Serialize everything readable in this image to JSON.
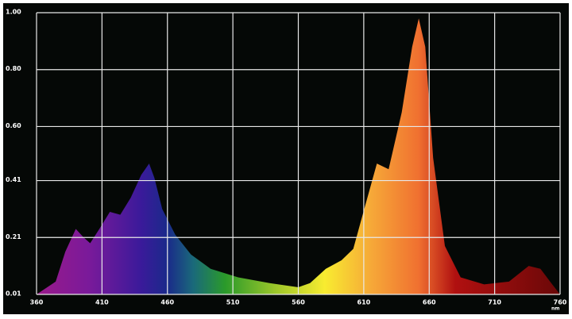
{
  "chart_data": {
    "type": "area",
    "x_label": "nm",
    "x": [
      360,
      374.6,
      382,
      390,
      396,
      401,
      408,
      416,
      424,
      432,
      440,
      446,
      450,
      456,
      466,
      478,
      493,
      514,
      538,
      560,
      569,
      581,
      593,
      602,
      611,
      620,
      629,
      639,
      647,
      652,
      657,
      663,
      672,
      684,
      702,
      721,
      736,
      745,
      754,
      760
    ],
    "y": [
      0.01,
      0.055,
      0.16,
      0.24,
      0.21,
      0.19,
      0.24,
      0.3,
      0.29,
      0.35,
      0.43,
      0.47,
      0.42,
      0.31,
      0.22,
      0.15,
      0.1,
      0.07,
      0.05,
      0.035,
      0.05,
      0.1,
      0.13,
      0.17,
      0.32,
      0.47,
      0.45,
      0.65,
      0.88,
      0.98,
      0.88,
      0.49,
      0.18,
      0.07,
      0.045,
      0.055,
      0.11,
      0.1,
      0.045,
      0.01
    ],
    "xlim": [
      360,
      760
    ],
    "xticks": [
      360,
      410,
      460,
      510,
      560,
      610,
      660,
      710,
      760
    ],
    "ylim": [
      0.01,
      1
    ],
    "yticks": [
      0.01,
      0.21,
      0.41,
      {
        "value": 0.6,
        "label": "0.60"
      },
      {
        "value": 0.8,
        "label": "0.80"
      },
      {
        "value": 1,
        "label": "1.00"
      }
    ],
    "grid": true,
    "grid_color": "#e8e8e8"
  }
}
